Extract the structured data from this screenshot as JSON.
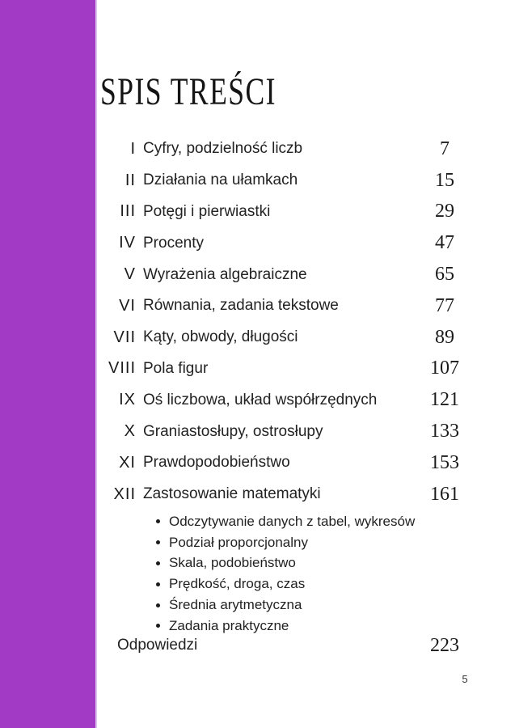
{
  "page": {
    "title": "SPIS TREŚCI",
    "footer_page_number": "5",
    "accent_color": "#a23ac6"
  },
  "toc": {
    "entries": [
      {
        "numeral": "I",
        "label": "Cyfry, podzielność liczb",
        "page": "7"
      },
      {
        "numeral": "II",
        "label": "Działania na ułamkach",
        "page": "15"
      },
      {
        "numeral": "III",
        "label": "Potęgi i pierwiastki",
        "page": "29"
      },
      {
        "numeral": "IV",
        "label": "Procenty",
        "page": "47"
      },
      {
        "numeral": "V",
        "label": "Wyrażenia algebraiczne",
        "page": "65"
      },
      {
        "numeral": "VI",
        "label": "Równania, zadania tekstowe",
        "page": "77"
      },
      {
        "numeral": "VII",
        "label": "Kąty, obwody, długości",
        "page": "89"
      },
      {
        "numeral": "VIII",
        "label": "Pola figur",
        "page": "107"
      },
      {
        "numeral": "IX",
        "label": "Oś liczbowa, układ współrzędnych",
        "page": "121"
      },
      {
        "numeral": "X",
        "label": "Graniastosłupy, ostrosłupy",
        "page": "133"
      },
      {
        "numeral": "XI",
        "label": "Prawdopodobieństwo",
        "page": "153"
      },
      {
        "numeral": "XII",
        "label": "Zastosowanie matematyki",
        "page": "161"
      }
    ],
    "subtopics": [
      "Odczytywanie danych z tabel, wykresów",
      "Podział proporcjonalny",
      "Skala, podobieństwo",
      "Prędkość, droga, czas",
      "Średnia arytmetyczna",
      "Zadania praktyczne"
    ],
    "answers": {
      "label": "Odpowiedzi",
      "page": "223"
    }
  }
}
